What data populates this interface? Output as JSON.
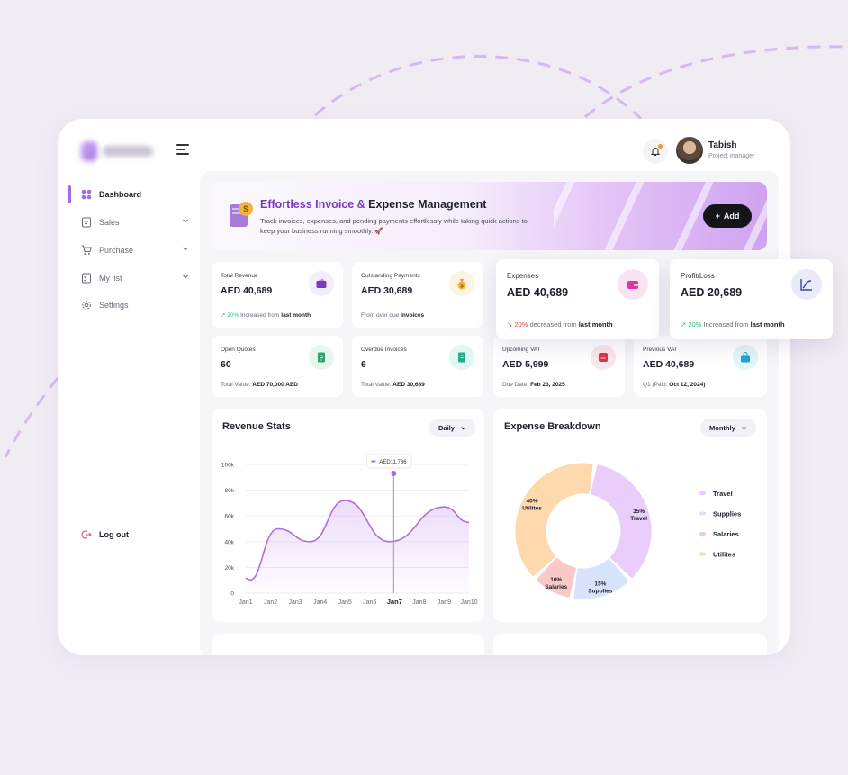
{
  "user": {
    "name": "Tabish",
    "role": "Project manager"
  },
  "sidebar": {
    "items": [
      {
        "label": "Dashboard",
        "icon": "grid-icon",
        "active": true
      },
      {
        "label": "Sales",
        "icon": "receipt-icon",
        "has_submenu": true
      },
      {
        "label": "Purchase",
        "icon": "cart-icon",
        "has_submenu": true
      },
      {
        "label": "My list",
        "icon": "checklist-icon",
        "has_submenu": true
      },
      {
        "label": "Settings",
        "icon": "gear-icon"
      }
    ],
    "logout_label": "Log out"
  },
  "hero": {
    "title_accent": "Effortless Invoice &",
    "title_rest": " Expense Management",
    "description": "Track invoices, expenses, and pending payments effortlessly while taking quick actions to keep your business running smoothly. 🚀",
    "add_label": "Add"
  },
  "stats": {
    "total_revenue": {
      "title": "Total Revenue",
      "value": "AED 40,689",
      "pct": "20%",
      "footer": "Increased from",
      "footer_bold": "last month"
    },
    "outstanding": {
      "title": "Outstanding Payments",
      "value": "AED 30,689",
      "footer": "From over due",
      "footer_bold": "invoices"
    },
    "expenses": {
      "title": "Expenses",
      "value": "AED 40,689",
      "pct": "20%",
      "footer": "decreased from",
      "footer_bold": "last month"
    },
    "profit": {
      "title": "Profit/Loss",
      "value": "AED 20,689",
      "pct": "20%",
      "footer": "Increased from",
      "footer_bold": "last month"
    },
    "open_quotes": {
      "title": "Open Quotes",
      "value": "60",
      "footer": "Total Value:",
      "footer_bold": "AED 70,000 AED"
    },
    "overdue": {
      "title": "Overdue Invoices",
      "value": "6",
      "footer": "Total Value:",
      "footer_bold": "AED 30,689"
    },
    "upcoming_vat": {
      "title": "Upcoming VAT",
      "value": "AED 5,999",
      "footer": "Due Date:",
      "footer_bold": "Feb 23, 2025"
    },
    "previous_vat": {
      "title": "Previous VAT",
      "value": "AED 40,689",
      "footer": "Q1 (Paid:",
      "footer_bold": "Oct 12, 2024)"
    }
  },
  "revenue": {
    "title": "Revenue Stats",
    "filter": "Daily",
    "tooltip": "AED11,786"
  },
  "expense": {
    "title": "Expense Breakdown",
    "filter": "Monthly"
  },
  "colors": {
    "accent": "#a46be8",
    "travel": "#e9cdfb",
    "supplies": "#d6e3fb",
    "salaries": "#f8c9c6",
    "utilites": "#fdd9ad"
  },
  "chart_data": [
    {
      "type": "line",
      "categories": [
        "Jan1",
        "Jan2",
        "Jan3",
        "Jan4",
        "Jan5",
        "Jan6",
        "Jan7",
        "Jan8",
        "Jan9",
        "Jan10"
      ],
      "values": [
        12000,
        50000,
        40000,
        72000,
        40000,
        67000,
        55000
      ],
      "x": [
        1,
        2.3,
        3.6,
        5.0,
        6.8,
        9.0,
        10.0
      ],
      "highlight": {
        "category": "Jan7",
        "label": "AED11,786"
      },
      "yticks": [
        "0",
        "20k",
        "40k",
        "60k",
        "80k",
        "100k"
      ],
      "ylim": [
        0,
        100000
      ]
    },
    {
      "type": "pie",
      "labels": [
        "Travel",
        "Supplies",
        "Salaries",
        "Utilites"
      ],
      "values": [
        35,
        15,
        10,
        40
      ],
      "value_labels": [
        "35%",
        "15%",
        "10%",
        "40%"
      ]
    }
  ]
}
